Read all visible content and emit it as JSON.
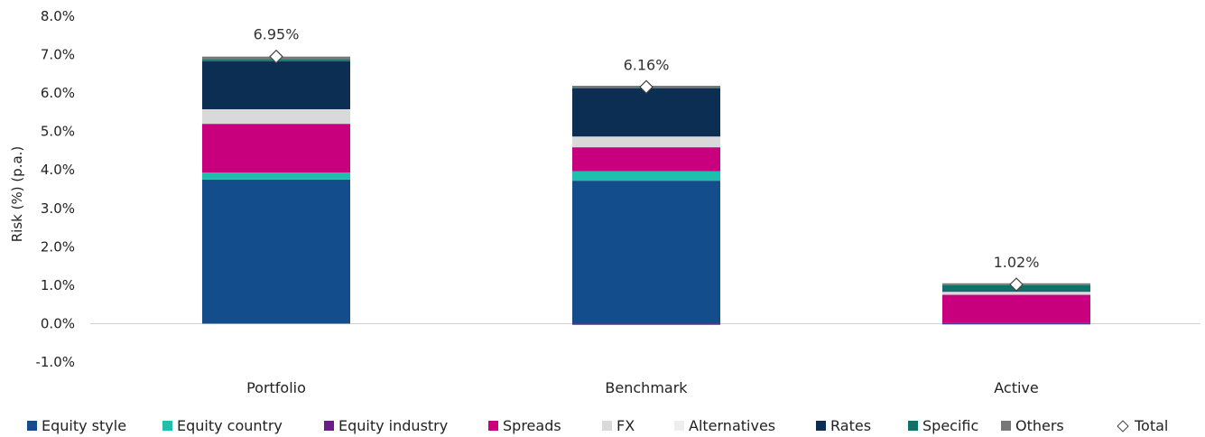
{
  "chart_data": {
    "type": "bar",
    "stacked": true,
    "ylabel": "Risk (%) (p.a.)",
    "ylim": [
      -1.0,
      8.0
    ],
    "yticks": [
      -1.0,
      0.0,
      1.0,
      2.0,
      3.0,
      4.0,
      5.0,
      6.0,
      7.0,
      8.0
    ],
    "ytick_labels": [
      "-1.0%",
      "0.0%",
      "1.0%",
      "2.0%",
      "3.0%",
      "4.0%",
      "5.0%",
      "6.0%",
      "7.0%",
      "8.0%"
    ],
    "grid": false,
    "legend_position": "bottom",
    "categories": [
      "Portfolio",
      "Benchmark",
      "Active"
    ],
    "series": [
      {
        "name": "Equity style",
        "color": "#134d8b",
        "values": [
          3.75,
          3.72,
          0.03
        ]
      },
      {
        "name": "Equity country",
        "color": "#1fbfad",
        "values": [
          0.18,
          0.25,
          0.0
        ]
      },
      {
        "name": "Equity industry",
        "color": "#6a1d86",
        "values": [
          0.0,
          -0.03,
          -0.02
        ]
      },
      {
        "name": "Spreads",
        "color": "#c8007e",
        "values": [
          1.27,
          0.62,
          0.72
        ]
      },
      {
        "name": "FX",
        "color": "#d9d9d9",
        "values": [
          0.38,
          0.28,
          0.08
        ]
      },
      {
        "name": "Alternatives",
        "color": "#eeeeee",
        "values": [
          0.0,
          0.0,
          0.0
        ]
      },
      {
        "name": "Rates",
        "color": "#0c2e52",
        "values": [
          1.25,
          1.26,
          0.02
        ]
      },
      {
        "name": "Specific",
        "color": "#10706a",
        "values": [
          0.05,
          0.01,
          0.15
        ]
      },
      {
        "name": "Others",
        "color": "#777777",
        "values": [
          0.07,
          0.05,
          0.05
        ]
      }
    ],
    "total": {
      "name": "Total",
      "marker": "diamond",
      "values": [
        6.95,
        6.16,
        1.02
      ],
      "labels": [
        "6.95%",
        "6.16%",
        "1.02%"
      ]
    }
  }
}
